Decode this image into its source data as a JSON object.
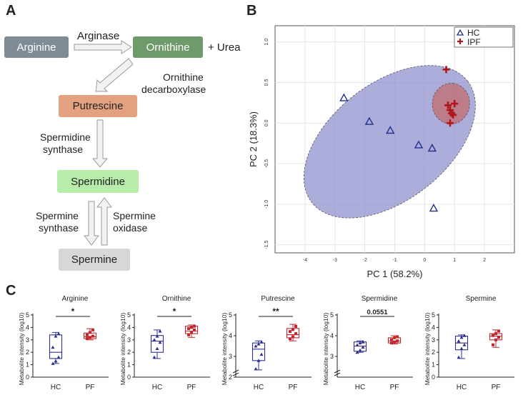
{
  "panels": {
    "a": "A",
    "b": "B",
    "c": "C"
  },
  "pathway": {
    "arginine": "Arginine",
    "ornithine": "Ornithine",
    "urea": "+ Urea",
    "putrescine": "Putrescine",
    "spermidine": "Spermidine",
    "spermine": "Spermine",
    "arginase": "Arginase",
    "odc_line1": "Ornithine",
    "odc_line2": "decarboxylase",
    "spds_line1": "Spermidine",
    "spds_line2": "synthase",
    "spms_line1": "Spermine",
    "spms_line2": "synthase",
    "smox_line1": "Spermine",
    "smox_line2": "oxidase",
    "colors": {
      "arginine": "#7f8c97",
      "ornithine": "#6e9a6c",
      "putrescine": "#e4a17f",
      "spermidine": "#b7ecaa",
      "spermine": "#d7d7d7"
    }
  },
  "chart_data": [
    {
      "type": "scatter",
      "title": "",
      "xlabel": "PC 1 (58.2%)",
      "ylabel": "PC 2 (18.3%)",
      "xlim": [
        -5,
        3
      ],
      "ylim": [
        -1.6,
        1.2
      ],
      "xticks": [
        -4,
        -3,
        -2,
        -1,
        0,
        1,
        2
      ],
      "yticks": [
        -1.5,
        -1.0,
        -0.5,
        0.0,
        0.5,
        1.0
      ],
      "xtick_labels": [
        "-4",
        "-3",
        "-2",
        "-1",
        "0",
        "1",
        "2"
      ],
      "ytick_labels": [
        "-1.5",
        "-1.0",
        "-0.5",
        "0.0",
        "0.5",
        "1.0"
      ],
      "grid": true,
      "legend": {
        "position": "top-right",
        "entries": [
          "HC",
          "IPF"
        ]
      },
      "series": [
        {
          "name": "HC",
          "marker": "triangle",
          "color": "#1f2f8a",
          "points": [
            [
              -2.7,
              0.31
            ],
            [
              -1.85,
              0.02
            ],
            [
              -1.15,
              -0.09
            ],
            [
              -0.2,
              -0.27
            ],
            [
              0.25,
              -0.31
            ],
            [
              0.3,
              -1.05
            ]
          ],
          "ellipse": {
            "cx": -1.17,
            "cy": -0.23,
            "rx": 3.3,
            "ry": 0.72,
            "angle_deg": -38,
            "color": "#8e8ecf"
          }
        },
        {
          "name": "IPF",
          "marker": "plus",
          "color": "#b0161c",
          "points": [
            [
              0.72,
              0.66
            ],
            [
              0.78,
              0.22
            ],
            [
              0.85,
              0.16
            ],
            [
              1.0,
              0.24
            ],
            [
              0.9,
              0.12
            ],
            [
              0.95,
              0.1
            ],
            [
              0.85,
              0.0
            ]
          ],
          "ellipse": {
            "cx": 0.88,
            "cy": 0.24,
            "rx": 0.68,
            "ry": 0.23,
            "angle_deg": -85,
            "color": "#c46a6a"
          }
        }
      ]
    },
    {
      "type": "box",
      "title": "Arginine",
      "ylabel": "Metabolite intensity (log10)",
      "categories": [
        "HC",
        "PF"
      ],
      "ylim": [
        0,
        5
      ],
      "yticks": [
        0,
        1,
        2,
        3,
        4,
        5
      ],
      "axis_break": false,
      "groups": [
        {
          "name": "HC",
          "color": "#2e3192",
          "min": 1.1,
          "q1": 1.5,
          "median": 2.0,
          "q3": 3.4,
          "max": 3.6,
          "points": [
            1.1,
            1.3,
            1.6,
            2.4,
            3.3,
            3.5
          ]
        },
        {
          "name": "PF",
          "color": "#c1272d",
          "min": 3.0,
          "q1": 3.1,
          "median": 3.25,
          "q3": 3.55,
          "max": 3.9,
          "points": [
            3.1,
            3.2,
            3.3,
            3.4,
            3.6,
            3.8
          ]
        }
      ],
      "significance": "*"
    },
    {
      "type": "box",
      "title": "Ornithine",
      "ylabel": "Metabolite intensity (log10)",
      "categories": [
        "HC",
        "PF"
      ],
      "ylim": [
        0,
        5
      ],
      "yticks": [
        0,
        1,
        2,
        3,
        4,
        5
      ],
      "axis_break": false,
      "groups": [
        {
          "name": "HC",
          "color": "#2e3192",
          "min": 1.5,
          "q1": 2.0,
          "median": 2.9,
          "q3": 3.35,
          "max": 3.8,
          "points": [
            1.6,
            2.3,
            2.8,
            3.0,
            3.3,
            3.7
          ]
        },
        {
          "name": "PF",
          "color": "#c1272d",
          "min": 3.2,
          "q1": 3.5,
          "median": 3.7,
          "q3": 4.1,
          "max": 4.2,
          "points": [
            3.4,
            3.6,
            3.8,
            3.9,
            4.0,
            4.1
          ]
        }
      ],
      "significance": "*"
    },
    {
      "type": "box",
      "title": "Putrescine",
      "ylabel": "Metabolite intensity (log10)",
      "categories": [
        "HC",
        "PF"
      ],
      "ylim": [
        2,
        5
      ],
      "yticks": [
        2,
        3,
        4,
        5
      ],
      "axis_break": true,
      "groups": [
        {
          "name": "HC",
          "color": "#2e3192",
          "min": 2.35,
          "q1": 2.8,
          "median": 3.35,
          "q3": 3.65,
          "max": 3.75,
          "points": [
            2.4,
            2.8,
            3.1,
            3.5,
            3.6,
            3.7
          ]
        },
        {
          "name": "PF",
          "color": "#c1272d",
          "min": 3.75,
          "q1": 3.9,
          "median": 4.05,
          "q3": 4.35,
          "max": 4.55,
          "points": [
            3.85,
            3.95,
            4.1,
            4.2,
            4.3,
            4.45
          ]
        }
      ],
      "significance": "**"
    },
    {
      "type": "box",
      "title": "Spermidine",
      "ylabel": "Metabolite intensity (log10)",
      "categories": [
        "HC",
        "PF"
      ],
      "ylim": [
        2,
        5
      ],
      "yticks": [
        3,
        4,
        5
      ],
      "axis_break": true,
      "groups": [
        {
          "name": "HC",
          "color": "#2e3192",
          "min": 3.2,
          "q1": 3.25,
          "median": 3.5,
          "q3": 3.7,
          "max": 3.75,
          "points": [
            3.2,
            3.3,
            3.45,
            3.55,
            3.65,
            3.7
          ]
        },
        {
          "name": "PF",
          "color": "#c1272d",
          "min": 3.6,
          "q1": 3.65,
          "median": 3.75,
          "q3": 3.9,
          "max": 4.0,
          "points": [
            3.65,
            3.7,
            3.75,
            3.8,
            3.9,
            3.95
          ]
        }
      ],
      "significance": "0.0551"
    },
    {
      "type": "box",
      "title": "Spermine",
      "ylabel": "Metabolite intensity (log10)",
      "categories": [
        "HC",
        "PF"
      ],
      "ylim": [
        0,
        5
      ],
      "yticks": [
        0,
        1,
        2,
        3,
        4,
        5
      ],
      "axis_break": false,
      "groups": [
        {
          "name": "HC",
          "color": "#2e3192",
          "min": 1.5,
          "q1": 2.2,
          "median": 2.75,
          "q3": 3.3,
          "max": 3.4,
          "points": [
            1.6,
            2.3,
            2.6,
            2.9,
            3.2,
            3.35
          ]
        },
        {
          "name": "PF",
          "color": "#c1272d",
          "min": 2.4,
          "q1": 3.0,
          "median": 3.3,
          "q3": 3.5,
          "max": 3.8,
          "points": [
            2.6,
            3.0,
            3.2,
            3.35,
            3.5,
            3.7
          ]
        }
      ],
      "significance": ""
    }
  ]
}
